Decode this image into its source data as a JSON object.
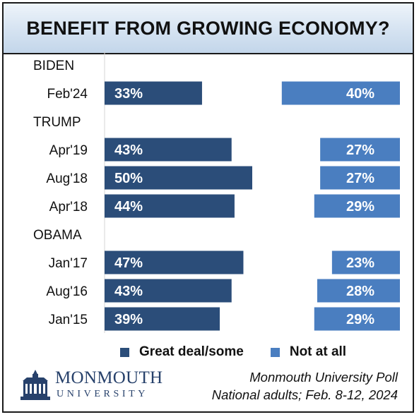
{
  "title": "BENEFIT FROM GROWING ECONOMY?",
  "chart_data": {
    "type": "bar",
    "title": "BENEFIT FROM GROWING ECONOMY?",
    "orientation": "horizontal",
    "groups": [
      {
        "label": "BIDEN",
        "rows": [
          {
            "category": "Feb'24",
            "great_deal_some": 33,
            "not_at_all": 40
          }
        ]
      },
      {
        "label": "TRUMP",
        "rows": [
          {
            "category": "Apr'19",
            "great_deal_some": 43,
            "not_at_all": 27
          },
          {
            "category": "Aug'18",
            "great_deal_some": 50,
            "not_at_all": 27
          },
          {
            "category": "Apr'18",
            "great_deal_some": 44,
            "not_at_all": 29
          }
        ]
      },
      {
        "label": "OBAMA",
        "rows": [
          {
            "category": "Jan'17",
            "great_deal_some": 47,
            "not_at_all": 23
          },
          {
            "category": "Aug'16",
            "great_deal_some": 43,
            "not_at_all": 28
          },
          {
            "category": "Jan'15",
            "great_deal_some": 39,
            "not_at_all": 29
          }
        ]
      }
    ],
    "series": [
      {
        "key": "great_deal_some",
        "name": "Great deal/some",
        "color": "#2b4d79"
      },
      {
        "key": "not_at_all",
        "name": "Not at all",
        "color": "#4a7ec0"
      }
    ],
    "value_suffix": "%",
    "legend_position": "bottom",
    "grid": false
  },
  "legend": {
    "great_label": "Great deal/some",
    "not_label": "Not at all"
  },
  "logo": {
    "name": "MONMOUTH",
    "sub": "UNIVERSITY"
  },
  "source": {
    "line1": "Monmouth University Poll",
    "line2": "National adults; Feb. 8-12, 2024"
  }
}
